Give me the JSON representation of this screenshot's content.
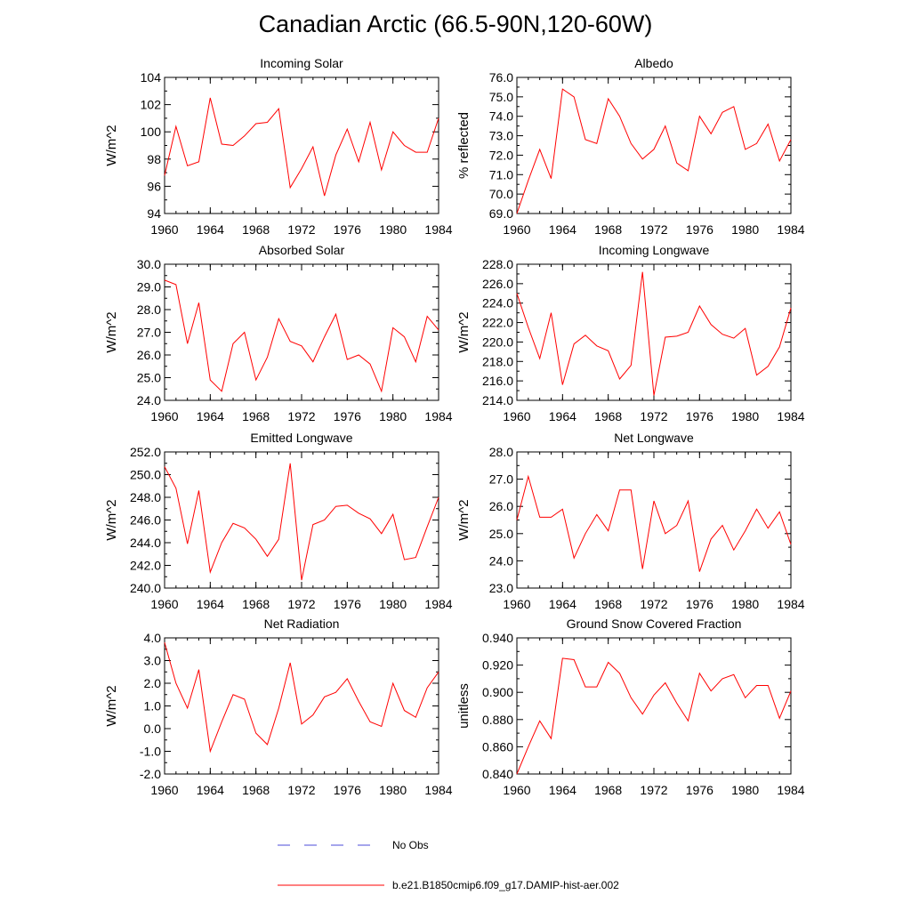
{
  "title": "Canadian Arctic (66.5-90N,120-60W)",
  "legend": [
    {
      "label": "No Obs",
      "color": "#4b4bd9",
      "style": "dashed"
    },
    {
      "label": "b.e21.B1850cmip6.f09_g17.DAMIP-hist-aer.002",
      "color": "#ff0000",
      "style": "solid"
    }
  ],
  "chart_data": [
    {
      "type": "line",
      "title": "Incoming Solar",
      "ylabel": "W/m^2",
      "xlabel": "",
      "xlim": [
        1960,
        1984
      ],
      "ylim": [
        94,
        104
      ],
      "xticks": [
        1960,
        1964,
        1968,
        1972,
        1976,
        1980,
        1984
      ],
      "yticks": [
        "94",
        "96",
        "98",
        "100",
        "102",
        "104"
      ],
      "series": [
        {
          "color": "#ff0000",
          "x": [
            1960,
            1961,
            1962,
            1963,
            1964,
            1965,
            1966,
            1967,
            1968,
            1969,
            1970,
            1971,
            1972,
            1973,
            1974,
            1975,
            1976,
            1977,
            1978,
            1979,
            1980,
            1981,
            1982,
            1983,
            1984
          ],
          "y": [
            96.8,
            100.4,
            97.5,
            97.8,
            102.5,
            99.1,
            99.0,
            99.7,
            100.6,
            100.7,
            101.7,
            95.9,
            97.3,
            98.9,
            95.3,
            98.3,
            100.2,
            97.8,
            100.7,
            97.2,
            100.0,
            99.0,
            98.5,
            98.5,
            101.0
          ]
        }
      ]
    },
    {
      "type": "line",
      "title": "Albedo",
      "ylabel": "% reflected",
      "xlabel": "",
      "xlim": [
        1960,
        1984
      ],
      "ylim": [
        69,
        76
      ],
      "xticks": [
        1960,
        1964,
        1968,
        1972,
        1976,
        1980,
        1984
      ],
      "yticks": [
        "69.0",
        "70.0",
        "71.0",
        "72.0",
        "73.0",
        "74.0",
        "75.0",
        "76.0"
      ],
      "series": [
        {
          "color": "#ff0000",
          "x": [
            1960,
            1961,
            1962,
            1963,
            1964,
            1965,
            1966,
            1967,
            1968,
            1969,
            1970,
            1971,
            1972,
            1973,
            1974,
            1975,
            1976,
            1977,
            1978,
            1979,
            1980,
            1981,
            1982,
            1983,
            1984
          ],
          "y": [
            69.0,
            70.7,
            72.3,
            70.8,
            75.4,
            75.0,
            72.8,
            72.6,
            74.9,
            74.0,
            72.6,
            71.8,
            72.3,
            73.5,
            71.6,
            71.2,
            74.0,
            73.1,
            74.2,
            74.5,
            72.3,
            72.6,
            73.6,
            71.7,
            72.8
          ]
        }
      ]
    },
    {
      "type": "line",
      "title": "Absorbed Solar",
      "ylabel": "W/m^2",
      "xlabel": "",
      "xlim": [
        1960,
        1984
      ],
      "ylim": [
        24,
        30
      ],
      "xticks": [
        1960,
        1964,
        1968,
        1972,
        1976,
        1980,
        1984
      ],
      "yticks": [
        "24.0",
        "25.0",
        "26.0",
        "27.0",
        "28.0",
        "29.0",
        "30.0"
      ],
      "series": [
        {
          "color": "#ff0000",
          "x": [
            1960,
            1961,
            1962,
            1963,
            1964,
            1965,
            1966,
            1967,
            1968,
            1969,
            1970,
            1971,
            1972,
            1973,
            1974,
            1975,
            1976,
            1977,
            1978,
            1979,
            1980,
            1981,
            1982,
            1983,
            1984
          ],
          "y": [
            29.3,
            29.1,
            26.5,
            28.3,
            24.9,
            24.4,
            26.5,
            27.0,
            24.9,
            25.9,
            27.6,
            26.6,
            26.4,
            25.7,
            26.8,
            27.8,
            25.8,
            26.0,
            25.6,
            24.4,
            27.2,
            26.8,
            25.7,
            27.7,
            27.1
          ]
        }
      ]
    },
    {
      "type": "line",
      "title": "Incoming Longwave",
      "ylabel": "W/m^2",
      "xlabel": "",
      "xlim": [
        1960,
        1984
      ],
      "ylim": [
        214,
        228
      ],
      "xticks": [
        1960,
        1964,
        1968,
        1972,
        1976,
        1980,
        1984
      ],
      "yticks": [
        "214.0",
        "216.0",
        "218.0",
        "220.0",
        "222.0",
        "224.0",
        "226.0",
        "228.0"
      ],
      "series": [
        {
          "color": "#ff0000",
          "x": [
            1960,
            1961,
            1962,
            1963,
            1964,
            1965,
            1966,
            1967,
            1968,
            1969,
            1970,
            1971,
            1972,
            1973,
            1974,
            1975,
            1976,
            1977,
            1978,
            1979,
            1980,
            1981,
            1982,
            1983,
            1984
          ],
          "y": [
            225.0,
            221.5,
            218.3,
            223.0,
            215.6,
            219.8,
            220.7,
            219.6,
            219.1,
            216.2,
            217.6,
            227.2,
            214.5,
            220.5,
            220.6,
            221.0,
            223.7,
            221.8,
            220.8,
            220.4,
            221.4,
            216.6,
            217.5,
            219.5,
            223.5
          ]
        }
      ]
    },
    {
      "type": "line",
      "title": "Emitted Longwave",
      "ylabel": "W/m^2",
      "xlabel": "",
      "xlim": [
        1960,
        1984
      ],
      "ylim": [
        240,
        252
      ],
      "xticks": [
        1960,
        1964,
        1968,
        1972,
        1976,
        1980,
        1984
      ],
      "yticks": [
        "240.0",
        "242.0",
        "244.0",
        "246.0",
        "248.0",
        "250.0",
        "252.0"
      ],
      "series": [
        {
          "color": "#ff0000",
          "x": [
            1960,
            1961,
            1962,
            1963,
            1964,
            1965,
            1966,
            1967,
            1968,
            1969,
            1970,
            1971,
            1972,
            1973,
            1974,
            1975,
            1976,
            1977,
            1978,
            1979,
            1980,
            1981,
            1982,
            1983,
            1984
          ],
          "y": [
            250.7,
            248.8,
            243.9,
            248.6,
            241.4,
            244.0,
            245.7,
            245.3,
            244.3,
            242.8,
            244.3,
            251.0,
            240.7,
            245.6,
            246.0,
            247.2,
            247.3,
            246.6,
            246.1,
            244.8,
            246.5,
            242.5,
            242.7,
            245.4,
            248.0
          ]
        }
      ]
    },
    {
      "type": "line",
      "title": "Net Longwave",
      "ylabel": "W/m^2",
      "xlabel": "",
      "xlim": [
        1960,
        1984
      ],
      "ylim": [
        23,
        28
      ],
      "xticks": [
        1960,
        1964,
        1968,
        1972,
        1976,
        1980,
        1984
      ],
      "yticks": [
        "23.0",
        "24.0",
        "25.0",
        "26.0",
        "27.0",
        "28.0"
      ],
      "series": [
        {
          "color": "#ff0000",
          "x": [
            1960,
            1961,
            1962,
            1963,
            1964,
            1965,
            1966,
            1967,
            1968,
            1969,
            1970,
            1971,
            1972,
            1973,
            1974,
            1975,
            1976,
            1977,
            1978,
            1979,
            1980,
            1981,
            1982,
            1983,
            1984
          ],
          "y": [
            25.5,
            27.1,
            25.6,
            25.6,
            25.9,
            24.1,
            25.0,
            25.7,
            25.1,
            26.6,
            26.6,
            23.7,
            26.2,
            25.0,
            25.3,
            26.2,
            23.6,
            24.8,
            25.3,
            24.4,
            25.1,
            25.9,
            25.2,
            25.8,
            24.6
          ]
        }
      ]
    },
    {
      "type": "line",
      "title": "Net Radiation",
      "ylabel": "W/m^2",
      "xlabel": "",
      "xlim": [
        1960,
        1984
      ],
      "ylim": [
        -2,
        4
      ],
      "xticks": [
        1960,
        1964,
        1968,
        1972,
        1976,
        1980,
        1984
      ],
      "yticks": [
        "-2.0",
        "-1.0",
        "0.0",
        "1.0",
        "2.0",
        "3.0",
        "4.0"
      ],
      "series": [
        {
          "color": "#ff0000",
          "x": [
            1960,
            1961,
            1962,
            1963,
            1964,
            1965,
            1966,
            1967,
            1968,
            1969,
            1970,
            1971,
            1972,
            1973,
            1974,
            1975,
            1976,
            1977,
            1978,
            1979,
            1980,
            1981,
            1982,
            1983,
            1984
          ],
          "y": [
            3.8,
            2.0,
            0.9,
            2.6,
            -1.0,
            0.3,
            1.5,
            1.3,
            -0.2,
            -0.7,
            0.9,
            2.9,
            0.2,
            0.6,
            1.4,
            1.6,
            2.2,
            1.2,
            0.3,
            0.1,
            2.0,
            0.8,
            0.5,
            1.8,
            2.5
          ]
        }
      ]
    },
    {
      "type": "line",
      "title": "Ground Snow Covered Fraction",
      "ylabel": "unitless",
      "xlabel": "",
      "xlim": [
        1960,
        1984
      ],
      "ylim": [
        0.84,
        0.94
      ],
      "xticks": [
        1960,
        1964,
        1968,
        1972,
        1976,
        1980,
        1984
      ],
      "yticks": [
        "0.840",
        "0.860",
        "0.880",
        "0.900",
        "0.920",
        "0.940"
      ],
      "series": [
        {
          "color": "#ff0000",
          "x": [
            1960,
            1961,
            1962,
            1963,
            1964,
            1965,
            1966,
            1967,
            1968,
            1969,
            1970,
            1971,
            1972,
            1973,
            1974,
            1975,
            1976,
            1977,
            1978,
            1979,
            1980,
            1981,
            1982,
            1983,
            1984
          ],
          "y": [
            0.84,
            0.86,
            0.879,
            0.866,
            0.925,
            0.924,
            0.904,
            0.904,
            0.922,
            0.914,
            0.896,
            0.884,
            0.898,
            0.907,
            0.892,
            0.879,
            0.914,
            0.901,
            0.91,
            0.913,
            0.896,
            0.905,
            0.905,
            0.881,
            0.901
          ]
        }
      ]
    }
  ]
}
